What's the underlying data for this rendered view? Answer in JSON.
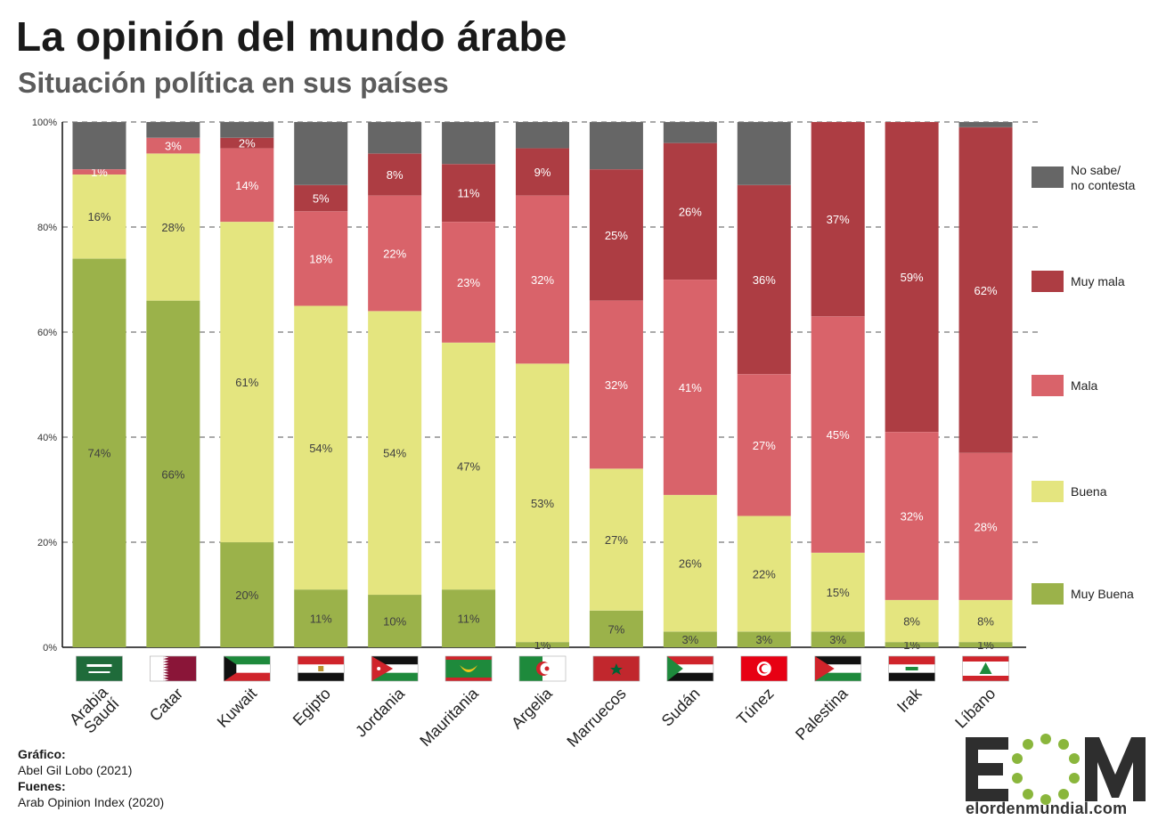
{
  "header": {
    "title": "La opinión del mundo árabe",
    "subtitle": "Situación política en sus países"
  },
  "credits": {
    "graphic_label": "Gráfico:",
    "graphic_author": "Abel Gil Lobo (2021)",
    "source_label": "Fuenes:",
    "source_name": "Arab Opinion Index (2020)"
  },
  "logo": {
    "letters": "EOM",
    "site": "elordenmundial.com"
  },
  "chart_data": {
    "type": "bar",
    "stacked": true,
    "percent": true,
    "ylim": [
      0,
      100
    ],
    "yticks": [
      "0%",
      "20%",
      "40%",
      "60%",
      "80%",
      "100%"
    ],
    "grid": true,
    "legend_position": "right",
    "categories": [
      "Arabia Saudí",
      "Catar",
      "Kuwait",
      "Egipto",
      "Jordania",
      "Mauritania",
      "Argelia",
      "Marruecos",
      "Sudán",
      "Túnez",
      "Palestina",
      "Irak",
      "Líbano"
    ],
    "series": [
      {
        "name": "Muy Buena",
        "color": "#9bb24a",
        "values": [
          74,
          66,
          20,
          11,
          10,
          11,
          1,
          7,
          3,
          3,
          3,
          1,
          1
        ],
        "labels": [
          "74%",
          "66%",
          "20%",
          "11%",
          "10%",
          "11%",
          "1%",
          "7%",
          "3%",
          "3%",
          "3%",
          "1%",
          "1%"
        ]
      },
      {
        "name": "Buena",
        "color": "#e4e57f",
        "values": [
          16,
          28,
          61,
          54,
          54,
          47,
          53,
          27,
          26,
          22,
          15,
          8,
          8
        ],
        "labels": [
          "16%",
          "28%",
          "61%",
          "54%",
          "54%",
          "47%",
          "53%",
          "27%",
          "26%",
          "22%",
          "15%",
          "8%",
          "8%"
        ]
      },
      {
        "name": "Mala",
        "color": "#d9636a",
        "values": [
          1,
          3,
          14,
          18,
          22,
          23,
          32,
          32,
          41,
          27,
          45,
          32,
          28
        ],
        "labels": [
          "1%",
          "3%",
          "14%",
          "18%",
          "22%",
          "23%",
          "32%",
          "32%",
          "41%",
          "27%",
          "45%",
          "32%",
          "28%"
        ]
      },
      {
        "name": "Muy mala",
        "color": "#ad3d43",
        "values": [
          0,
          0,
          2,
          5,
          8,
          11,
          9,
          25,
          26,
          36,
          37,
          59,
          62
        ],
        "labels": [
          "",
          "",
          "2%",
          "5%",
          "8%",
          "11%",
          "9%",
          "25%",
          "26%",
          "36%",
          "37%",
          "59%",
          "62%"
        ]
      },
      {
        "name": "No sabe/ no contesta",
        "color": "#666666",
        "values": [
          9,
          3,
          3,
          12,
          6,
          8,
          5,
          9,
          4,
          12,
          0,
          0,
          1
        ],
        "labels": [
          "",
          "",
          "",
          "",
          "",
          "",
          "",
          "",
          "",
          "",
          "",
          "",
          ""
        ]
      }
    ],
    "legend": [
      {
        "lines": [
          "No sabe/",
          "no contesta"
        ],
        "color": "#666666"
      },
      {
        "lines": [
          "Muy mala"
        ],
        "color": "#ad3d43"
      },
      {
        "lines": [
          "Mala"
        ],
        "color": "#d9636a"
      },
      {
        "lines": [
          "Buena"
        ],
        "color": "#e4e57f"
      },
      {
        "lines": [
          "Muy Buena"
        ],
        "color": "#9bb24a"
      }
    ],
    "flags": [
      "saudi-arabia-flag",
      "qatar-flag",
      "kuwait-flag",
      "egypt-flag",
      "jordan-flag",
      "mauritania-flag",
      "algeria-flag",
      "morocco-flag",
      "sudan-flag",
      "tunisia-flag",
      "palestine-flag",
      "iraq-flag",
      "lebanon-flag"
    ]
  }
}
